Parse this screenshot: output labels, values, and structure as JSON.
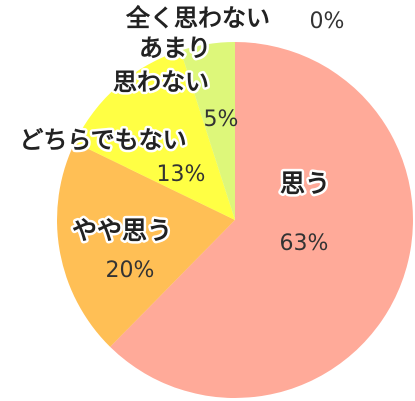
{
  "chart_data": {
    "type": "pie",
    "title": "",
    "start": "top",
    "direction": "clockwise",
    "legend": "none",
    "slices": [
      {
        "label": "思う",
        "value": 63,
        "value_label": "63%",
        "color": "#ffaa99"
      },
      {
        "label": "やや思う",
        "value": 20,
        "value_label": "20%",
        "color": "#ffbf55"
      },
      {
        "label": "どちらでもない",
        "value": 13,
        "value_label": "13%",
        "color": "#ffff44"
      },
      {
        "label_lines": [
          "あまり",
          "思わない"
        ],
        "value": 5,
        "value_label": "5%",
        "color": "#ddf77a"
      },
      {
        "label": "全く思わない",
        "value": 0,
        "value_label": "0%",
        "color": "#dddddd"
      }
    ]
  }
}
